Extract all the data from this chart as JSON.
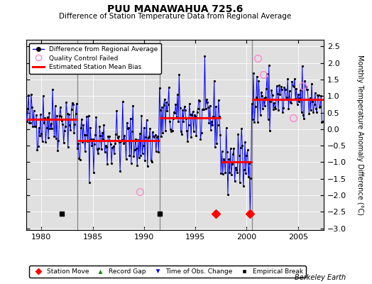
{
  "title": "PUU MANAWAHUA 725.6",
  "subtitle": "Difference of Station Temperature Data from Regional Average",
  "ylabel": "Monthly Temperature Anomaly Difference (°C)",
  "credit": "Berkeley Earth",
  "xlim": [
    1978.5,
    2007.5
  ],
  "ylim": [
    -3.05,
    2.7
  ],
  "yticks": [
    -3,
    -2.5,
    -2,
    -1.5,
    -1,
    -0.5,
    0,
    0.5,
    1,
    1.5,
    2,
    2.5
  ],
  "xticks": [
    1980,
    1985,
    1990,
    1995,
    2000,
    2005
  ],
  "background_color": "#e0e0e0",
  "grid_color": "#ffffff",
  "segments": [
    {
      "x_start": 1978.5,
      "x_end": 1983.5,
      "bias": 0.3
    },
    {
      "x_start": 1983.5,
      "x_end": 1991.5,
      "bias": -0.35
    },
    {
      "x_start": 1991.5,
      "x_end": 1997.5,
      "bias": 0.35
    },
    {
      "x_start": 1997.5,
      "x_end": 2000.5,
      "bias": -1.0
    },
    {
      "x_start": 2000.5,
      "x_end": 2007.5,
      "bias": 0.9
    }
  ],
  "vertical_lines": [
    1983.5,
    1991.5,
    2000.5
  ],
  "station_moves": [
    1997.0,
    2000.3
  ],
  "empirical_breaks": [
    1982.0,
    1991.5
  ],
  "qc_failed_x": [
    1989.6,
    2001.1,
    2001.6,
    2004.5,
    2005.4
  ],
  "qc_failed_y": [
    -1.9,
    2.15,
    1.65,
    0.35,
    1.3
  ],
  "seed": 42,
  "noise_std": 0.48,
  "marker_y": -2.55
}
